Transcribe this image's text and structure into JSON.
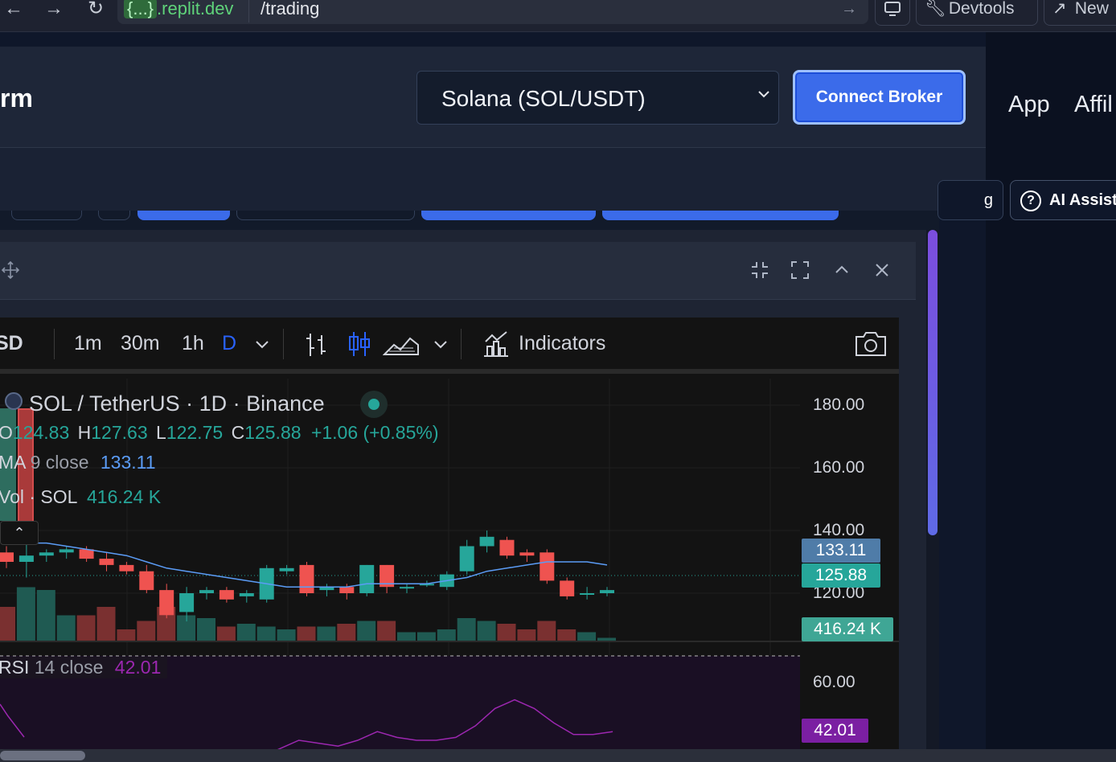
{
  "browser": {
    "back": "←",
    "forward": "→",
    "reload": "↻",
    "url_host_prefix": "{...}",
    "url_host": ".replit.dev",
    "url_path": "/trading",
    "devtools_label": "Devtools",
    "new_label": "New"
  },
  "header": {
    "brand_fragment": "rm",
    "symbol_select": "Solana (SOL/USDT)",
    "connect_label": "Connect Broker",
    "nav_app": "App",
    "nav_affil": "Affil",
    "ai_partial": "g",
    "ai_assist_label": "AI Assist"
  },
  "toolbar": {
    "symbol_fragment": "SD",
    "intervals": [
      "1m",
      "30m",
      "1h",
      "D"
    ],
    "indicators_label": "Indicators"
  },
  "legend": {
    "title": "SOL / TetherUS · 1D · Binance",
    "o_label": "O",
    "o_val": "124.83",
    "h_label": "H",
    "h_val": "127.63",
    "l_label": "L",
    "l_val": "122.75",
    "c_label": "C",
    "c_val": "125.88",
    "change": "+1.06 (+0.85%)",
    "ma_label": "MA",
    "ma_params": "9 close",
    "ma_val": "133.11",
    "vol_label": "Vol · SOL",
    "vol_val": "416.24 K",
    "rsi_label": "RSI",
    "rsi_params": "14 close",
    "rsi_val": "42.01"
  },
  "axis": {
    "price_ticks": [
      "180.00",
      "160.00",
      "140.00",
      "120.00"
    ],
    "rsi_tick": "60.00",
    "ma_tag": "133.11",
    "price_tag": "125.88",
    "vol_tag": "416.24 K",
    "rsi_tag": "42.01"
  },
  "colors": {
    "up": "#26a69a",
    "down": "#ef5350",
    "ma": "#5b9cf6",
    "rsi": "#9c27b0",
    "accent": "#3b6bea"
  },
  "chart_data": {
    "type": "candlestick",
    "title": "SOL / TetherUS · 1D · Binance",
    "ylim": [
      115,
      185
    ],
    "candles": [
      {
        "o": 133,
        "h": 135,
        "l": 128,
        "c": 130
      },
      {
        "o": 130,
        "h": 136,
        "l": 125,
        "c": 132
      },
      {
        "o": 132,
        "h": 134,
        "l": 130,
        "c": 133
      },
      {
        "o": 133,
        "h": 135,
        "l": 131,
        "c": 134
      },
      {
        "o": 134,
        "h": 135,
        "l": 130,
        "c": 131
      },
      {
        "o": 131,
        "h": 133,
        "l": 127,
        "c": 129
      },
      {
        "o": 129,
        "h": 130,
        "l": 126,
        "c": 127
      },
      {
        "o": 127,
        "h": 129,
        "l": 120,
        "c": 121
      },
      {
        "o": 121,
        "h": 123,
        "l": 112,
        "c": 113
      },
      {
        "o": 114,
        "h": 122,
        "l": 111,
        "c": 120
      },
      {
        "o": 120,
        "h": 122,
        "l": 118,
        "c": 121
      },
      {
        "o": 121,
        "h": 122,
        "l": 117,
        "c": 118
      },
      {
        "o": 119,
        "h": 121,
        "l": 117,
        "c": 120
      },
      {
        "o": 118,
        "h": 129,
        "l": 117,
        "c": 128
      },
      {
        "o": 127,
        "h": 129,
        "l": 126,
        "c": 128
      },
      {
        "o": 129,
        "h": 130,
        "l": 119,
        "c": 120
      },
      {
        "o": 121,
        "h": 123,
        "l": 119,
        "c": 122
      },
      {
        "o": 122,
        "h": 123,
        "l": 118,
        "c": 120
      },
      {
        "o": 120,
        "h": 129,
        "l": 119,
        "c": 129
      },
      {
        "o": 129,
        "h": 129,
        "l": 120,
        "c": 122
      },
      {
        "o": 122,
        "h": 123,
        "l": 120,
        "c": 122
      },
      {
        "o": 123,
        "h": 124,
        "l": 122,
        "c": 123
      },
      {
        "o": 122,
        "h": 127,
        "l": 121,
        "c": 126
      },
      {
        "o": 127,
        "h": 137,
        "l": 126,
        "c": 135
      },
      {
        "o": 135,
        "h": 140,
        "l": 133,
        "c": 138
      },
      {
        "o": 137,
        "h": 138,
        "l": 131,
        "c": 132
      },
      {
        "o": 133,
        "h": 134,
        "l": 130,
        "c": 132
      },
      {
        "o": 133,
        "h": 134,
        "l": 123,
        "c": 124
      },
      {
        "o": 124,
        "h": 125,
        "l": 118,
        "c": 119
      },
      {
        "o": 120,
        "h": 122,
        "l": 118,
        "c": 120
      },
      {
        "o": 120,
        "h": 122,
        "l": 119,
        "c": 121
      }
    ],
    "ma": [
      136,
      136,
      136,
      135,
      134,
      133,
      132,
      130,
      128,
      127,
      126,
      125,
      124,
      123,
      122,
      122,
      122,
      122,
      123,
      123,
      123,
      123,
      124,
      125,
      127,
      128,
      129,
      130,
      130,
      130,
      129
    ],
    "volume": [
      0.6,
      0.95,
      0.9,
      0.45,
      0.45,
      0.6,
      0.2,
      0.35,
      0.6,
      0.45,
      0.4,
      0.25,
      0.3,
      0.25,
      0.2,
      0.25,
      0.25,
      0.3,
      0.35,
      0.35,
      0.15,
      0.15,
      0.2,
      0.4,
      0.35,
      0.3,
      0.2,
      0.35,
      0.2,
      0.15,
      0.05
    ],
    "rsi": [
      30,
      28,
      29,
      30,
      31,
      33,
      34,
      30,
      26,
      28,
      30,
      31,
      34,
      37,
      40,
      39,
      38,
      40,
      43,
      41,
      40,
      40,
      41,
      45,
      51,
      54,
      51,
      46,
      42,
      42,
      43
    ]
  }
}
